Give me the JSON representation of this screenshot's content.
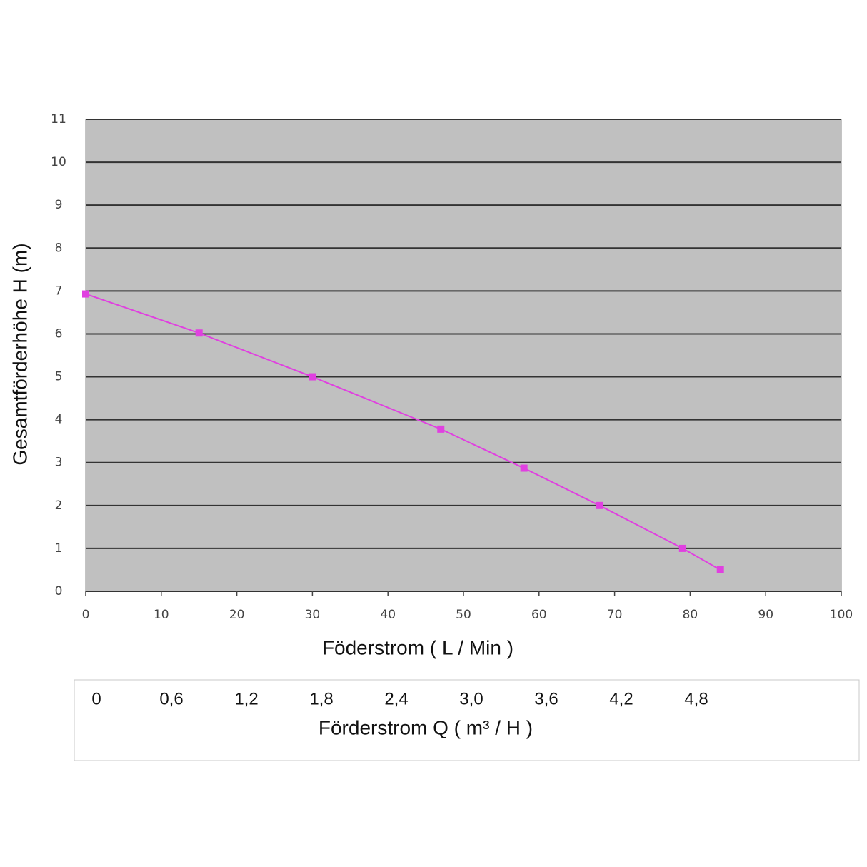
{
  "chart_data": {
    "type": "line",
    "xlabel": "Föderstrom ( L / Min )",
    "ylabel": "Gesamtförderhöhe  H (m)",
    "x": [
      0,
      15,
      30,
      47,
      58,
      68,
      79,
      84
    ],
    "series": [
      {
        "color": "#e040e0",
        "values": [
          6.93,
          6.02,
          5.0,
          3.78,
          2.87,
          2.0,
          1.0,
          0.5
        ]
      }
    ],
    "xlim": [
      0,
      100
    ],
    "xticks": [
      0,
      10,
      20,
      30,
      40,
      50,
      60,
      70,
      80,
      90,
      100
    ],
    "ylim": [
      0,
      11
    ],
    "yticks": [
      0,
      1,
      2,
      3,
      4,
      5,
      6,
      7,
      8,
      9,
      10,
      11
    ],
    "grid": true,
    "x2label": "Förderstrom Q ( m³ / H )",
    "x2lim": [
      0,
      4.8
    ],
    "x2ticks": [
      0,
      {
        "value": 0.6,
        "label": "0,6"
      },
      {
        "value": 1.2,
        "label": "1,2"
      },
      {
        "value": 1.8,
        "label": "1,8"
      },
      {
        "value": 2.4,
        "label": "2,4"
      },
      {
        "value": 3.0,
        "label": "3,0"
      },
      {
        "value": 3.6,
        "label": "3,6"
      },
      {
        "value": 4.2,
        "label": "4,2"
      },
      {
        "value": 4.8,
        "label": "4,8"
      }
    ]
  }
}
